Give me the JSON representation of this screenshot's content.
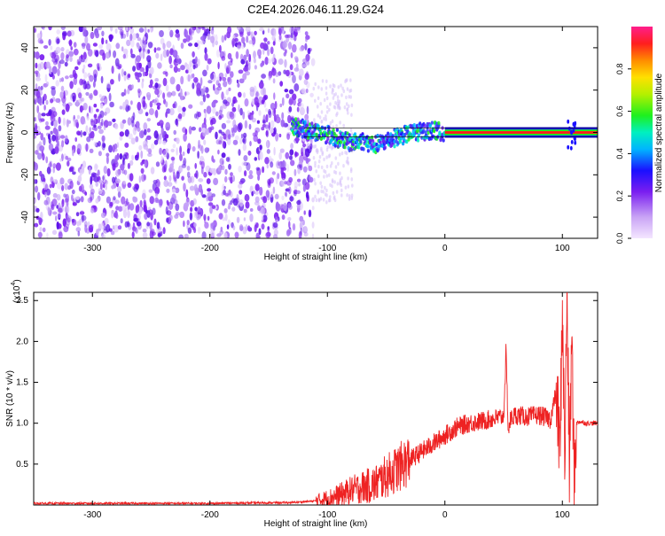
{
  "title": "C2E4.2026.046.11.29.G24",
  "chart_data": [
    {
      "type": "heatmap",
      "id": "spectrogram",
      "xlabel": "Height of straight line (km)",
      "ylabel": "Frequency (Hz)",
      "xlim": [
        -350,
        130
      ],
      "ylim": [
        -50,
        50
      ],
      "x_ticks": [
        -300,
        -200,
        -100,
        0,
        100
      ],
      "y_ticks": [
        -40,
        -20,
        0,
        20,
        40
      ],
      "noise_region_km": [
        -350,
        -112
      ],
      "signal_track": [
        {
          "x": -130,
          "y": 3
        },
        {
          "x": -115,
          "y": 1
        },
        {
          "x": -100,
          "y": -1
        },
        {
          "x": -90,
          "y": -3
        },
        {
          "x": -80,
          "y": -5
        },
        {
          "x": -70,
          "y": -4
        },
        {
          "x": -60,
          "y": -6
        },
        {
          "x": -50,
          "y": -4
        },
        {
          "x": -40,
          "y": -2
        },
        {
          "x": -25,
          "y": 0
        },
        {
          "x": -10,
          "y": 1
        },
        {
          "x": 0,
          "y": 0
        },
        {
          "x": 130,
          "y": 0
        }
      ],
      "reference_line_hz": [
        2,
        -2
      ],
      "colorbar": {
        "label": "Normalized spectral amplitude",
        "ticks": [
          0.0,
          0.2,
          0.4,
          0.6,
          0.8
        ],
        "range": [
          0,
          1
        ]
      }
    },
    {
      "type": "line",
      "id": "snr",
      "xlabel": "Height of straight line (km)",
      "ylabel": "SNR (10 * v/v)",
      "multiplier_label": "(x10",
      "multiplier_exponent": "4",
      "multiplier_suffix": ")",
      "xlim": [
        -350,
        130
      ],
      "ylim": [
        0,
        2.6
      ],
      "x_ticks": [
        -300,
        -200,
        -100,
        0,
        100
      ],
      "y_ticks": [
        0.5,
        1.0,
        1.5,
        2.0,
        2.5
      ],
      "y_tick_labels": [
        "0.5",
        "1.0",
        "1.5",
        "2.0",
        "2.5"
      ],
      "color": "#ee2222",
      "series": [
        {
          "name": "SNR",
          "x": [
            -350,
            -300,
            -200,
            -130,
            -110,
            -100,
            -90,
            -80,
            -70,
            -60,
            -50,
            -40,
            -30,
            -20,
            -10,
            0,
            10,
            20,
            30,
            40,
            50,
            52,
            54,
            56,
            60,
            70,
            80,
            90,
            95,
            98,
            100,
            102,
            104,
            106,
            108,
            110,
            112,
            115,
            120,
            130
          ],
          "y": [
            0.02,
            0.02,
            0.02,
            0.03,
            0.05,
            0.08,
            0.12,
            0.18,
            0.22,
            0.25,
            0.35,
            0.45,
            0.55,
            0.65,
            0.75,
            0.85,
            0.95,
            1.0,
            1.02,
            1.05,
            1.08,
            1.85,
            0.9,
            1.05,
            1.1,
            1.08,
            1.1,
            1.05,
            1.4,
            0.6,
            2.5,
            0.5,
            2.6,
            0.4,
            2.1,
            0.3,
            1.0,
            1.02,
            1.0,
            1.0
          ]
        }
      ]
    }
  ]
}
